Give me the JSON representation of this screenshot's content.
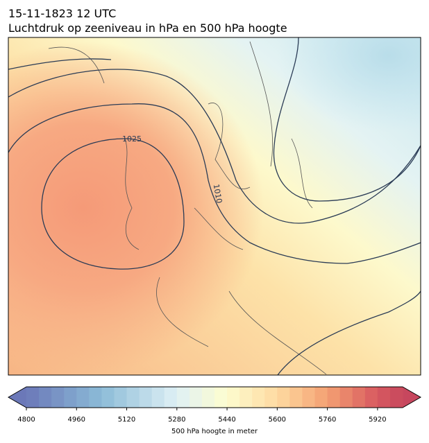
{
  "header": {
    "line1": "15-11-1823 12 UTC",
    "line2": "Luchtdruk op zeeniveau in hPa en 500 hPa hoogte"
  },
  "contour_labels": [
    "1025",
    "1010"
  ],
  "colorbar": {
    "lim": [
      4800,
      6000
    ],
    "ticks": [
      4800,
      4960,
      5120,
      5280,
      5440,
      5600,
      5760,
      5920
    ],
    "label": "500 hPa hoogte in meter"
  }
}
